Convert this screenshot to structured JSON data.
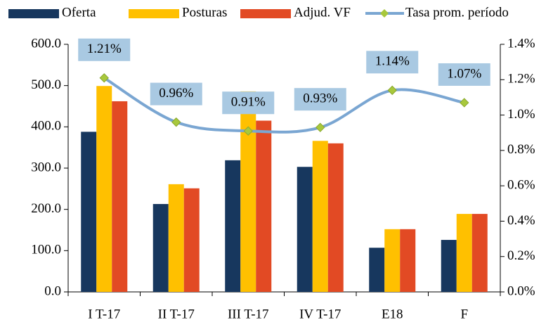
{
  "chart_data": {
    "type": "bar",
    "categories": [
      "I T-17",
      "II T-17",
      "III T-17",
      "IV T-17",
      "E18",
      "F"
    ],
    "series": [
      {
        "name": "Oferta",
        "color": "#17375e",
        "values": [
          388,
          213,
          319,
          303,
          107,
          126
        ]
      },
      {
        "name": "Posturas",
        "color": "#ffc000",
        "values": [
          499,
          261,
          486,
          366,
          152,
          189
        ]
      },
      {
        "name": "Adjud.  VF",
        "color": "#e24a24",
        "values": [
          462,
          251,
          415,
          360,
          152,
          189
        ]
      },
      {
        "name": "Tasa prom. período",
        "type": "line",
        "axis": "y2",
        "color": "#7aa6d2",
        "marker_color": "#a8c83c",
        "values": [
          1.21,
          0.96,
          0.91,
          0.93,
          1.14,
          1.07
        ],
        "value_labels": [
          "1.21%",
          "0.96%",
          "0.91%",
          "0.93%",
          "1.14%",
          "1.07%"
        ]
      }
    ],
    "ylim": [
      0,
      600
    ],
    "yticks": [
      {
        "value": 0,
        "label": "0.0"
      },
      {
        "value": 100,
        "label": "100.0"
      },
      {
        "value": 200,
        "label": "200.0"
      },
      {
        "value": 300,
        "label": "300.0"
      },
      {
        "value": 400,
        "label": "400.0"
      },
      {
        "value": 500,
        "label": "500.0"
      },
      {
        "value": 600,
        "label": "600.0"
      }
    ],
    "y2lim": [
      0,
      1.4
    ],
    "y2ticks": [
      {
        "value": 0,
        "label": "0.0%"
      },
      {
        "value": 0.2,
        "label": "0.2%"
      },
      {
        "value": 0.4,
        "label": "0.4%"
      },
      {
        "value": 0.6,
        "label": "0.6%"
      },
      {
        "value": 0.8,
        "label": "0.8%"
      },
      {
        "value": 1.0,
        "label": "1.0%"
      },
      {
        "value": 1.2,
        "label": "1.2%"
      },
      {
        "value": 1.4,
        "label": "1.4%"
      }
    ],
    "legend": "top",
    "grid": false
  }
}
